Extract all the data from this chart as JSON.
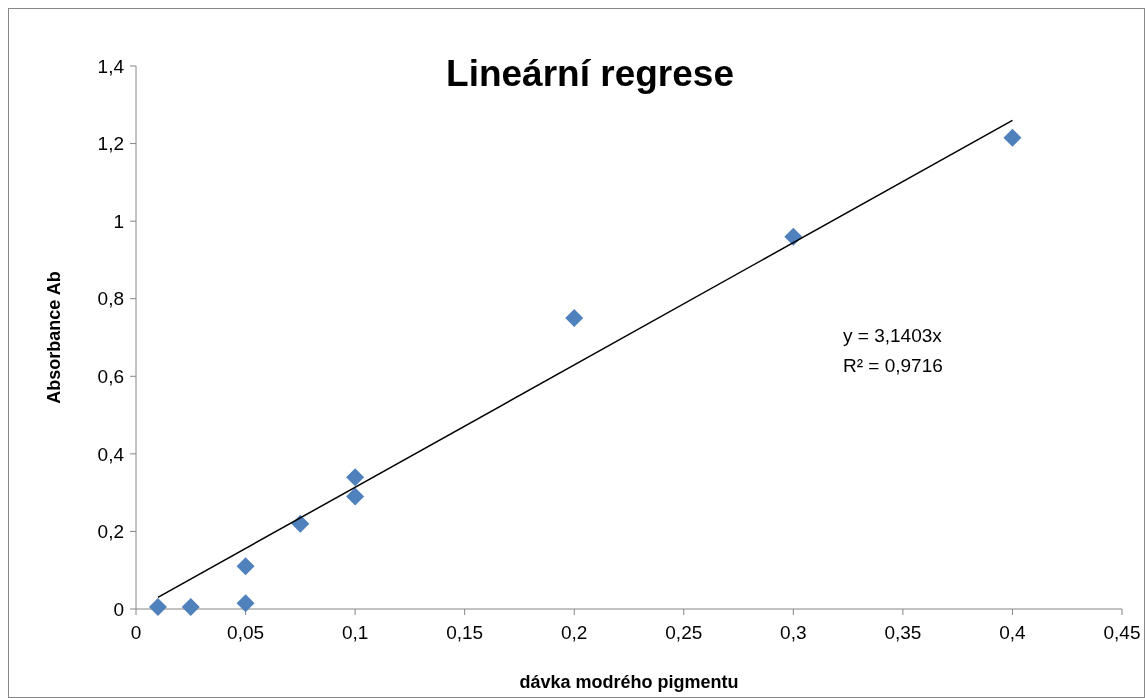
{
  "chart_data": {
    "type": "scatter",
    "title": "Lineární regrese",
    "xlabel": "dávka modrého pigmentu",
    "ylabel": "Absorbance Ab",
    "series": [
      {
        "color": "#4f81bd",
        "marker": "diamond",
        "x": [
          0.01,
          0.025,
          0.05,
          0.05,
          0.075,
          0.1,
          0.1,
          0.2,
          0.3,
          0.4
        ],
        "values": [
          0.005,
          0.005,
          0.015,
          0.11,
          0.22,
          0.29,
          0.34,
          0.75,
          0.96,
          1.215
        ]
      },
      {
        "type": "line",
        "color": "#000000",
        "marker": "none",
        "x": [
          0.01,
          0.4
        ],
        "values": [
          0.03,
          1.26
        ]
      }
    ],
    "xlim": [
      0,
      0.45
    ],
    "xticks": [
      0,
      {
        "value": 0.05,
        "label": "0,05"
      },
      {
        "value": 0.1,
        "label": "0,1"
      },
      {
        "value": 0.15,
        "label": "0,15"
      },
      {
        "value": 0.2,
        "label": "0,2"
      },
      {
        "value": 0.25,
        "label": "0,25"
      },
      {
        "value": 0.3,
        "label": "0,3"
      },
      {
        "value": 0.35,
        "label": "0,35"
      },
      {
        "value": 0.4,
        "label": "0,4"
      },
      {
        "value": 0.45,
        "label": "0,45"
      }
    ],
    "ylim": [
      0,
      1.4
    ],
    "yticks": [
      0,
      {
        "value": 0.2,
        "label": "0,2"
      },
      {
        "value": 0.4,
        "label": "0,4"
      },
      {
        "value": 0.6,
        "label": "0,6"
      },
      {
        "value": 0.8,
        "label": "0,8"
      },
      1,
      {
        "value": 1.2,
        "label": "1,2"
      },
      {
        "value": 1.4,
        "label": "1,4"
      }
    ],
    "annotations": [
      "y = 3,1403x",
      "R² = 0,9716"
    ],
    "grid": false
  }
}
